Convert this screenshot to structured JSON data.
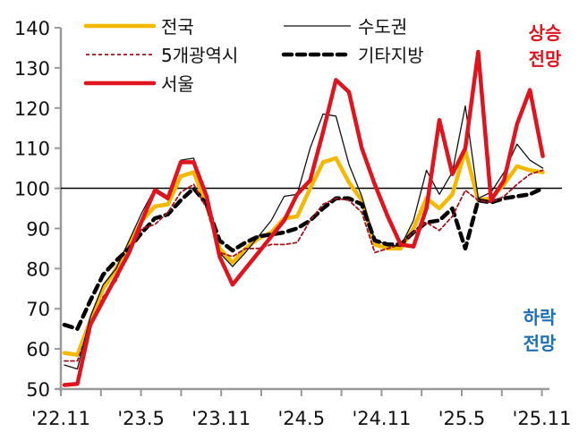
{
  "chart_data": {
    "type": "line",
    "title": "",
    "xlabel": "",
    "ylabel": "",
    "ylim": [
      50,
      140
    ],
    "yticks": [
      50,
      60,
      70,
      80,
      90,
      100,
      110,
      120,
      130,
      140
    ],
    "reference_line": 100,
    "grid": false,
    "legend_position": "top-left, two columns",
    "x_tick_labels": [
      "'22.11",
      "'23.5",
      "'23.11",
      "'24.5",
      "'24.11",
      "'25.5",
      "'25.11"
    ],
    "x": [
      "22.11",
      "22.12",
      "23.1",
      "23.2",
      "23.3",
      "23.4",
      "23.5",
      "23.6",
      "23.7",
      "23.8",
      "23.9",
      "23.10",
      "23.11",
      "23.12",
      "24.1",
      "24.2",
      "24.3",
      "24.4",
      "24.5",
      "24.6",
      "24.7",
      "24.8",
      "24.9",
      "24.10",
      "24.11",
      "24.12",
      "25.1",
      "25.2",
      "25.3",
      "25.4",
      "25.5",
      "25.6",
      "25.7",
      "25.8",
      "25.9",
      "25.10",
      "25.11",
      "25.12"
    ],
    "series": [
      {
        "name": "전국",
        "color": "#f5b800",
        "style": "solid-thick",
        "values": [
          59,
          58.5,
          67,
          75,
          80,
          86,
          92,
          95.5,
          96,
          103,
          104,
          96,
          85,
          81.5,
          85,
          87.5,
          89,
          92.5,
          93,
          100,
          106.5,
          107.5,
          101.5,
          97,
          86,
          85,
          85,
          90,
          97.5,
          95,
          98.5,
          109.5,
          97,
          97.5,
          101,
          105.5,
          104.5,
          104
        ]
      },
      {
        "name": "수도권",
        "color": "#111111",
        "style": "solid-thin",
        "values": [
          56,
          55,
          68,
          76,
          80,
          87,
          94,
          100,
          98,
          107,
          107.5,
          97,
          84,
          80.5,
          84,
          88,
          92,
          98,
          98.5,
          110,
          118.5,
          118,
          106,
          98,
          87,
          86,
          85.5,
          92,
          104.5,
          98.5,
          104,
          120.5,
          97.5,
          99,
          104,
          111,
          107,
          105
        ]
      },
      {
        "name": "5개광역시",
        "color": "#a0161e",
        "style": "dashed-thin",
        "values": [
          57,
          57,
          66,
          73,
          77,
          84,
          90,
          91,
          94,
          99,
          101,
          95,
          84,
          83,
          85,
          85,
          86,
          86,
          86.5,
          92,
          96,
          97.5,
          97,
          94,
          84,
          85,
          86,
          89,
          91.5,
          89.5,
          93,
          99.5,
          97,
          96.5,
          98,
          101,
          103.5,
          104.5
        ]
      },
      {
        "name": "서울",
        "color": "#e0141e",
        "style": "solid-thick",
        "values": [
          51,
          51.3,
          66,
          72,
          78,
          84,
          92,
          99.5,
          97.5,
          106.5,
          106.5,
          98,
          83,
          76,
          80,
          84,
          88,
          92,
          98.5,
          102,
          114,
          127,
          124,
          110,
          101,
          93,
          86,
          85.5,
          95,
          117,
          103.5,
          110,
          134,
          97,
          102,
          116,
          124.5,
          108
        ]
      },
      {
        "name": "기타지방",
        "color": "#000000",
        "style": "dashed-thick",
        "values": [
          66,
          65,
          72,
          78.5,
          82,
          85,
          89,
          92.5,
          93.5,
          97,
          100,
          96,
          87,
          84.5,
          86.5,
          88,
          88.5,
          89,
          90,
          92,
          95,
          97.5,
          97.5,
          96,
          87,
          86,
          86,
          89,
          91.5,
          92,
          95,
          85,
          97,
          96.5,
          97.5,
          98,
          98.5,
          100
        ]
      }
    ],
    "annotations": [
      {
        "text": "상승\n전망",
        "color": "#e0141e",
        "position": "top-right"
      },
      {
        "text": "하락\n전망",
        "color": "#1f6fb8",
        "position": "bottom-right"
      }
    ]
  },
  "legend": {
    "items": [
      {
        "label": "전국"
      },
      {
        "label": "수도권"
      },
      {
        "label": "5개광역시"
      },
      {
        "label": "기타지방"
      },
      {
        "label": "서울"
      }
    ]
  },
  "annotations": {
    "up_line1": "상승",
    "up_line2": "전망",
    "down_line1": "하락",
    "down_line2": "전망"
  }
}
